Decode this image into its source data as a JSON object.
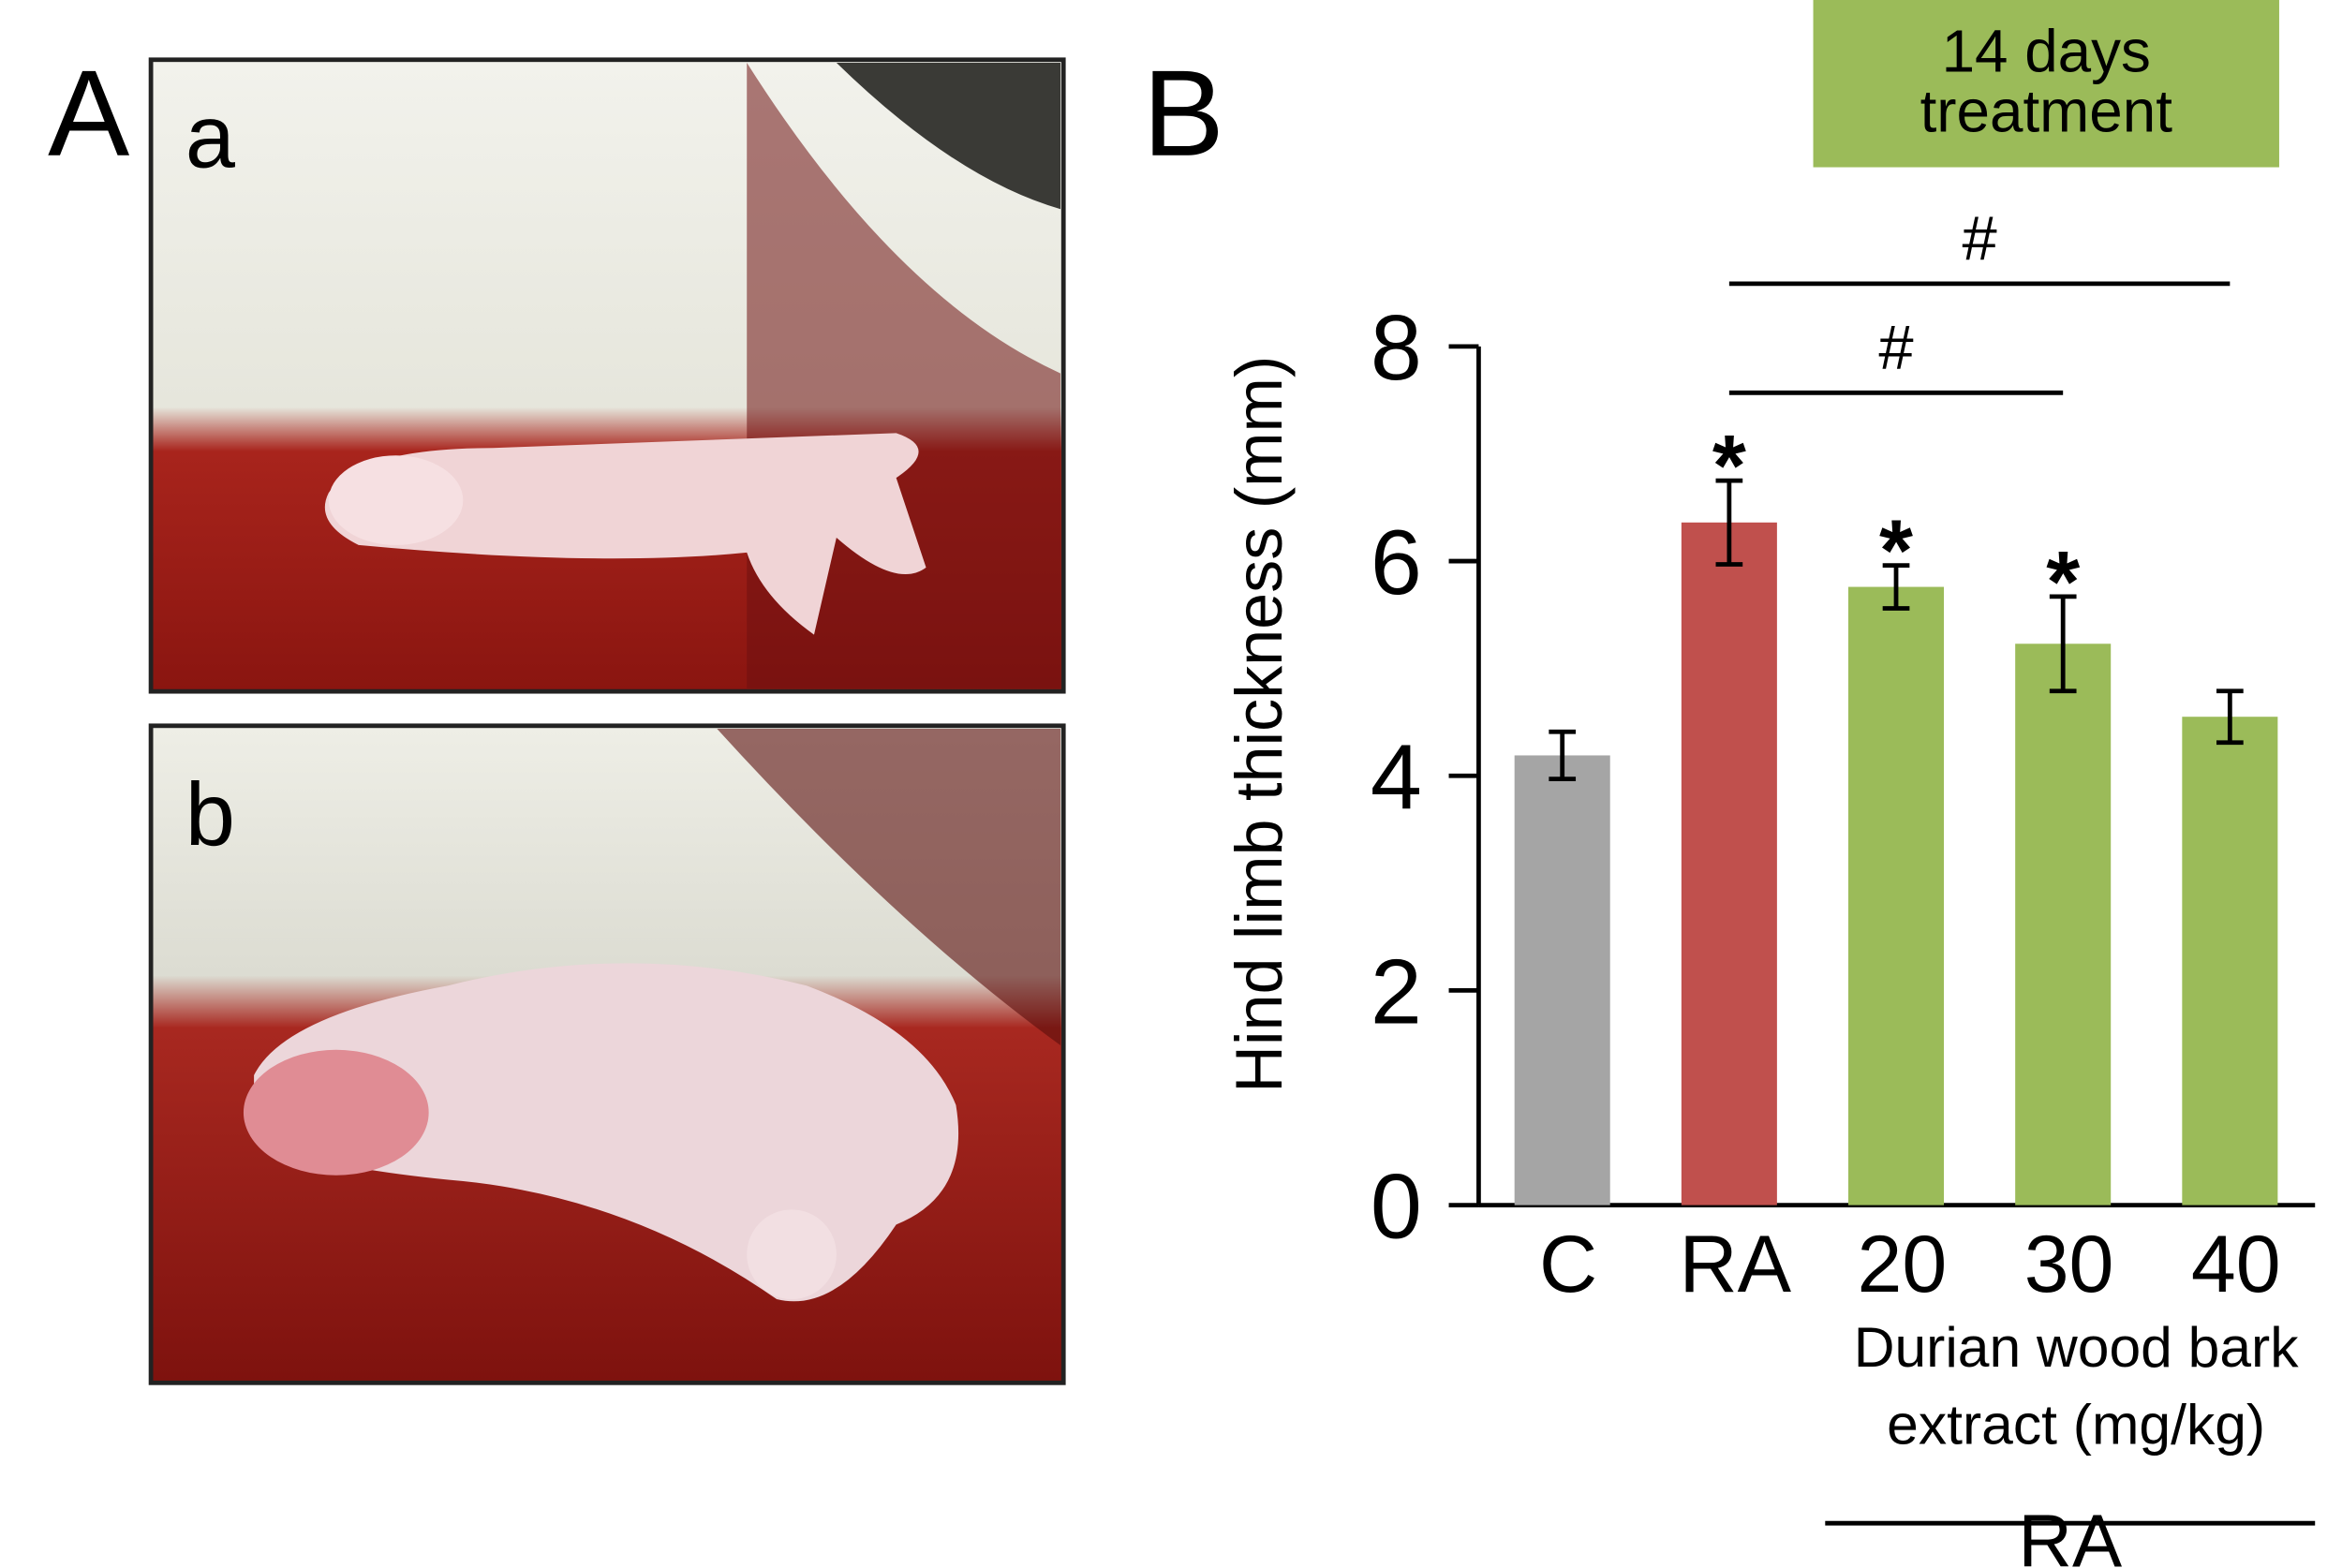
{
  "figure": {
    "panel_labels": [
      "A",
      "B"
    ],
    "photo_labels": [
      "a",
      "b"
    ]
  },
  "chart_data": {
    "type": "bar",
    "y_label": "Hind limb thickness (mm)",
    "categories": [
      "C",
      "RA",
      "20",
      "30",
      "40"
    ],
    "values": [
      4.19,
      6.36,
      5.76,
      5.23,
      4.55
    ],
    "errors": [
      0.22,
      0.39,
      0.2,
      0.44,
      0.24
    ],
    "colors": [
      "#a5a5a5",
      "#c0504d",
      "#9bbb59",
      "#9bbb59",
      "#9bbb59"
    ],
    "significance": [
      null,
      "*",
      "*",
      "*",
      null
    ],
    "comparisons": [
      {
        "from": "RA",
        "to": "30",
        "label": "#"
      },
      {
        "from": "RA",
        "to": "40",
        "label": "#"
      }
    ],
    "ylim": [
      0,
      8
    ],
    "yticks": [
      0,
      2,
      4,
      6,
      8
    ],
    "x_group_label": [
      "Durian wood bark",
      "extract (mg/kg)"
    ],
    "x_outer_label": "RA",
    "note": [
      "14 days",
      "treatment"
    ]
  }
}
